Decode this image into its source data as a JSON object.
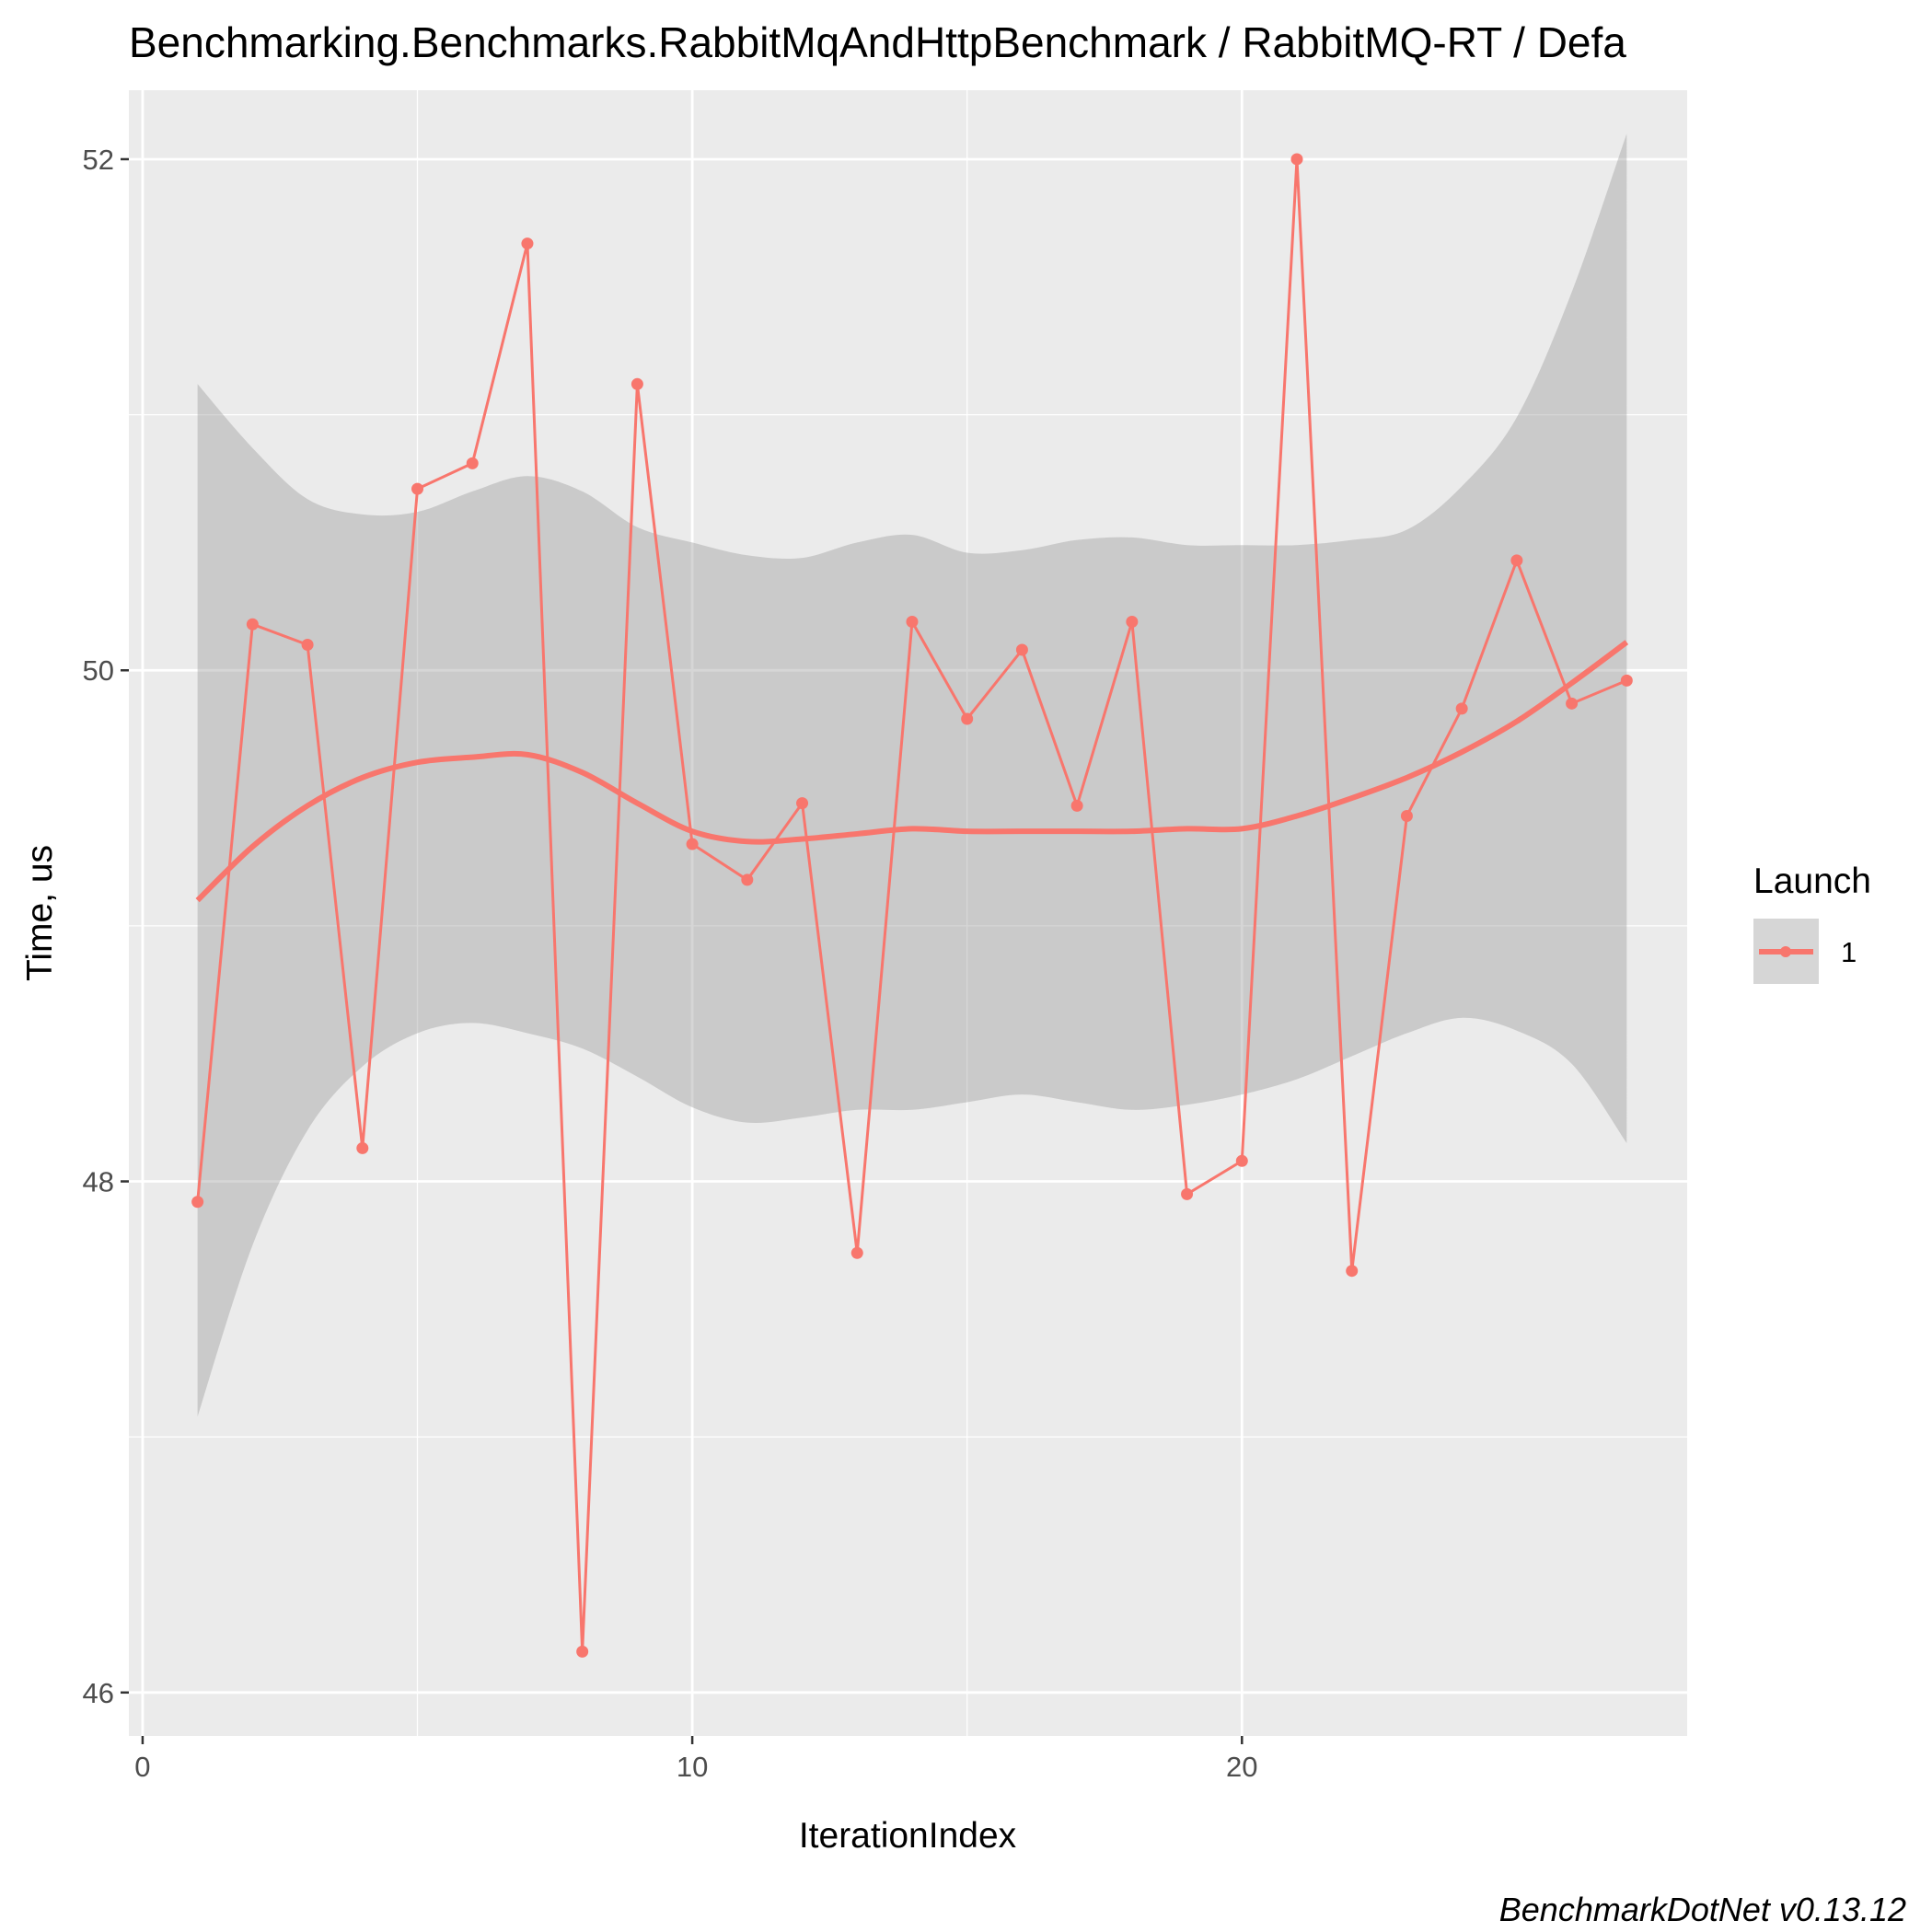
{
  "chart_data": {
    "type": "line",
    "title": "Benchmarking.Benchmarks.RabbitMqAndHttpBenchmark / RabbitMQ-RT / Defa",
    "xlabel": "IterationIndex",
    "ylabel": "Time, us",
    "xlim": [
      -0.25,
      28.1
    ],
    "ylim": [
      45.83,
      52.27
    ],
    "x_ticks": [
      0,
      10,
      20
    ],
    "x_tick_labels": [
      "0",
      "10",
      "20"
    ],
    "y_ticks": [
      46,
      48,
      50,
      52
    ],
    "y_tick_labels": [
      "46",
      "48",
      "50",
      "52"
    ],
    "grid": true,
    "legend": {
      "title": "Launch",
      "position": "right",
      "entries": [
        "1"
      ]
    },
    "colors": {
      "series": "#F8766D",
      "band": "#999999",
      "panel": "#EBEBEB",
      "grid": "#FFFFFF"
    },
    "series": [
      {
        "name": "1",
        "x": [
          1,
          2,
          3,
          4,
          5,
          6,
          7,
          8,
          9,
          10,
          11,
          12,
          13,
          14,
          15,
          16,
          17,
          18,
          19,
          20,
          21,
          22,
          23,
          24,
          25,
          26,
          27
        ],
        "values": [
          47.92,
          50.18,
          50.1,
          48.13,
          50.71,
          50.81,
          51.67,
          46.16,
          51.12,
          49.32,
          49.18,
          49.48,
          47.72,
          50.19,
          49.81,
          50.08,
          49.47,
          50.19,
          47.95,
          48.08,
          52.0,
          47.65,
          49.43,
          49.85,
          50.43,
          49.87,
          49.96
        ]
      }
    ],
    "smooth": {
      "x": [
        1,
        2,
        3,
        4,
        5,
        6,
        7,
        8,
        9,
        10,
        11,
        12,
        13,
        14,
        15,
        16,
        17,
        18,
        19,
        20,
        21,
        22,
        23,
        24,
        25,
        26,
        27
      ],
      "fit": [
        49.1,
        49.31,
        49.47,
        49.58,
        49.64,
        49.66,
        49.67,
        49.6,
        49.48,
        49.37,
        49.33,
        49.34,
        49.36,
        49.38,
        49.37,
        49.37,
        49.37,
        49.37,
        49.38,
        49.38,
        49.43,
        49.5,
        49.58,
        49.68,
        49.8,
        49.95,
        50.11
      ],
      "lower": [
        47.08,
        47.75,
        48.2,
        48.45,
        48.58,
        48.62,
        48.58,
        48.52,
        48.41,
        48.29,
        48.23,
        48.25,
        48.28,
        48.28,
        48.31,
        48.34,
        48.31,
        48.28,
        48.3,
        48.34,
        48.4,
        48.49,
        48.58,
        48.64,
        48.59,
        48.46,
        48.15
      ],
      "upper": [
        51.12,
        50.87,
        50.67,
        50.61,
        50.62,
        50.7,
        50.76,
        50.7,
        50.56,
        50.5,
        50.45,
        50.44,
        50.5,
        50.53,
        50.46,
        50.47,
        50.51,
        50.52,
        50.49,
        50.49,
        50.49,
        50.51,
        50.55,
        50.72,
        50.99,
        51.48,
        52.1
      ]
    },
    "caption": "BenchmarkDotNet v0.13.12"
  }
}
